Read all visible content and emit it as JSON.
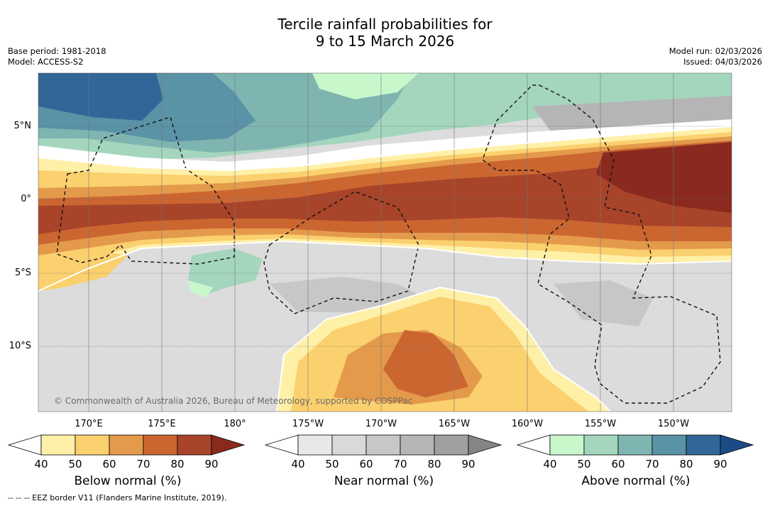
{
  "title": {
    "line1": "Tercile rainfall probabilities for",
    "line2": "9 to 15 March 2026"
  },
  "meta": {
    "base_period": "Base period: 1981-2018",
    "model": "Model: ACCESS-S2",
    "model_run": "Model run: 02/03/2026",
    "issued": "Issued: 04/03/2026"
  },
  "map": {
    "lat_labels": [
      "5°N",
      "0°",
      "5°S",
      "10°S"
    ],
    "lon_labels": [
      "170°E",
      "175°E",
      "180°",
      "175°W",
      "170°W",
      "165°W",
      "160°W",
      "155°W",
      "150°W"
    ],
    "copyright": "© Commonwealth of Australia 2026, Bureau of Meteorology, supported by COSPPac"
  },
  "colorbars": [
    {
      "title": "Below normal (%)",
      "ticks": [
        "40",
        "50",
        "60",
        "70",
        "80",
        "90"
      ],
      "colors": [
        "#fff0a8",
        "#fbd06e",
        "#e49a4b",
        "#cc6631",
        "#a8442a",
        "#8a2a1e"
      ]
    },
    {
      "title": "Near normal (%)",
      "ticks": [
        "40",
        "50",
        "60",
        "70",
        "80",
        "90"
      ],
      "colors": [
        "#e8e8e8",
        "#d9d9d9",
        "#c7c7c7",
        "#b5b5b5",
        "#a0a0a0",
        "#858585"
      ]
    },
    {
      "title": "Above normal (%)",
      "ticks": [
        "40",
        "50",
        "60",
        "70",
        "80",
        "90"
      ],
      "colors": [
        "#c9f7cc",
        "#a3d6bd",
        "#7fb5b0",
        "#5a92a6",
        "#336698",
        "#1c4a86"
      ]
    }
  ],
  "footer": "--  --  -- EEZ border V11 (Flanders Marine Institute, 2019)."
}
